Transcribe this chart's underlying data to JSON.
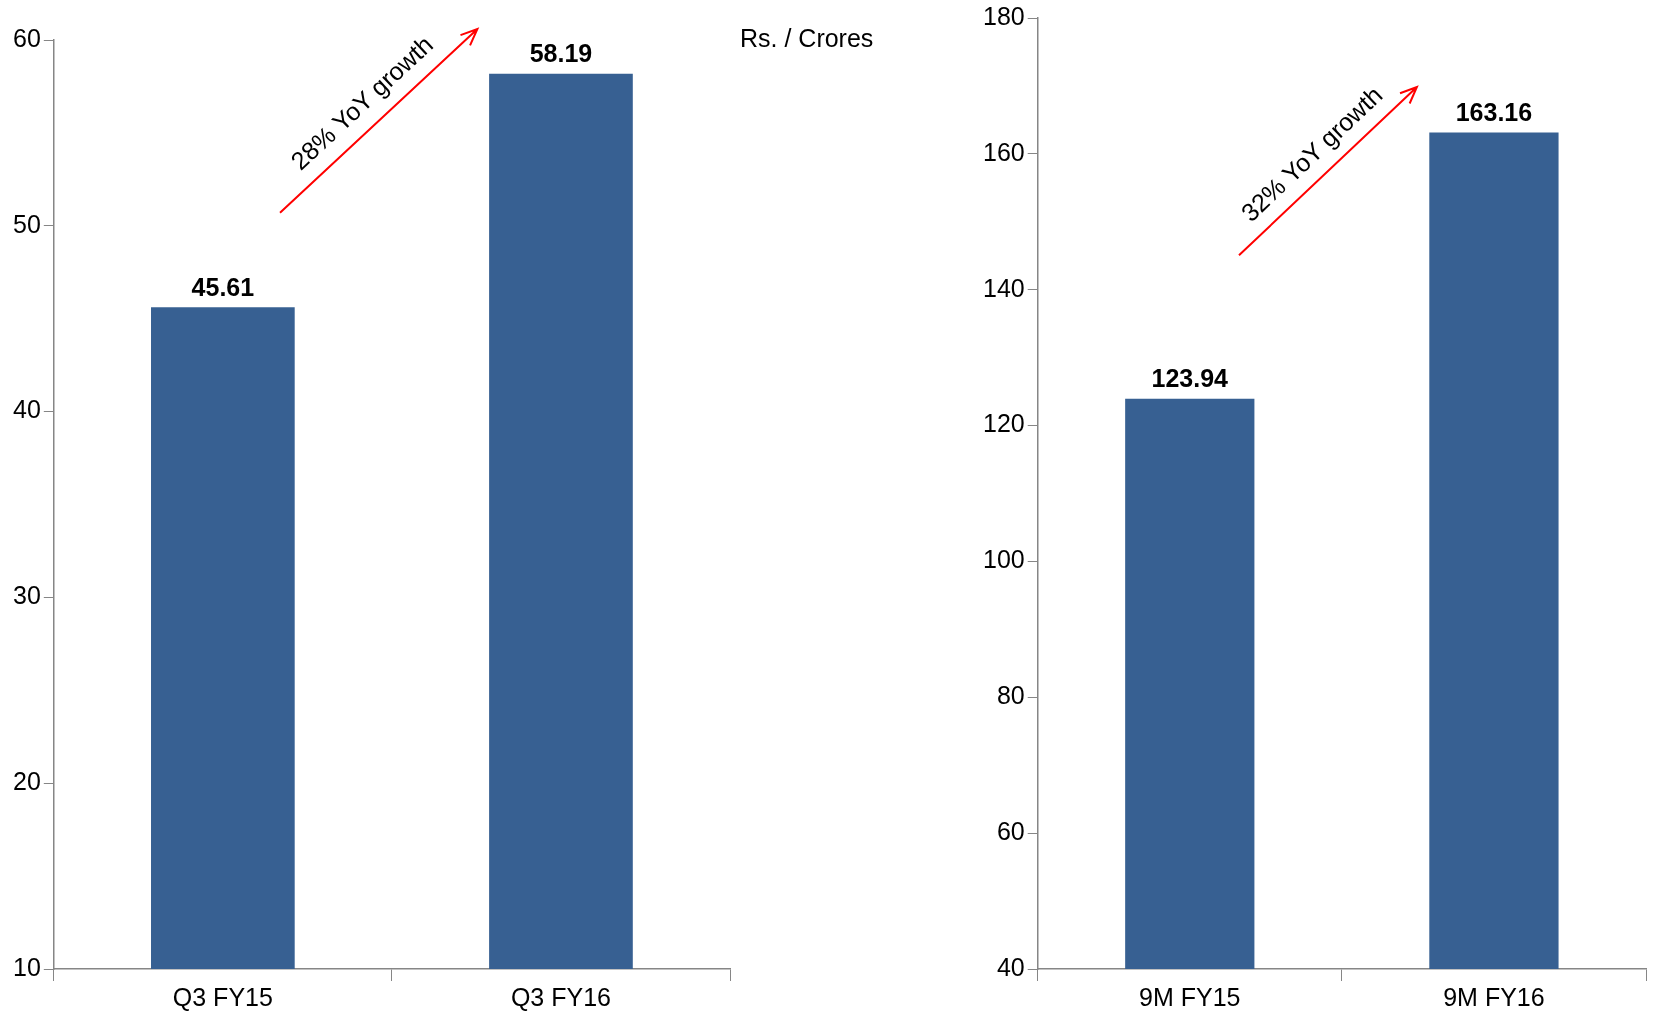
{
  "chart_data": [
    {
      "type": "bar",
      "categories": [
        "Q3 FY15",
        "Q3 FY16"
      ],
      "values": [
        45.61,
        58.19
      ],
      "color": "#376092",
      "ylim": [
        10,
        60
      ],
      "yticks": [
        10,
        20,
        30,
        40,
        50,
        60
      ],
      "data_labels": true,
      "annotations": [
        "28% YoY growth",
        "Rs. / Crores"
      ]
    },
    {
      "type": "bar",
      "categories": [
        "9M FY15",
        "9M FY16"
      ],
      "values": [
        123.94,
        163.16
      ],
      "color": "#376092",
      "ylim": [
        40,
        180
      ],
      "yticks": [
        40,
        60,
        80,
        100,
        120,
        140,
        160,
        180
      ],
      "data_labels": true,
      "annotations": [
        "32% YoY growth"
      ]
    }
  ]
}
